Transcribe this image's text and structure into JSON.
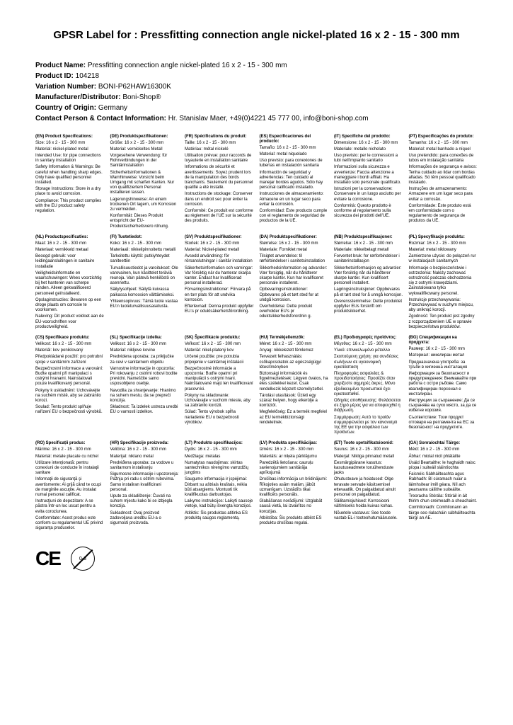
{
  "title": "GPSR Label for : Pressfitting connection angle nickel-plated 16 x 2 - 15 - 300 mm",
  "meta": {
    "productNameLabel": "Product Name:",
    "productName": "Pressfitting connection angle nickel-plated 16 x 2 - 15 - 300 mm",
    "productIdLabel": "Product ID:",
    "productId": "104218",
    "variationLabel": "Variation Number:",
    "variation": "BONI-P62HAW16300K",
    "mfrLabel": "Manufacturer/Distributor:",
    "mfr": "Boni-Shop®",
    "countryLabel": "Country of Origin:",
    "country": "Germany",
    "contactLabel": "Contact Person & Contact Information:",
    "contact": "Hr. Stanislav Maer, +49(0)4221 45 777 00, info@boni-shop.com"
  },
  "rows": [
    [
      {
        "hd": "(EN) Product Specifications:",
        "sz": "Size: 16 x 2 - 15 - 300 mm",
        "lines": [
          "Material: nickel-plated metal",
          "Intended Use: for pipe connections in sanitary installation",
          "Safety Information & Warnings: Be careful when handling sharp edges. Only have qualified personnel installed.",
          "Storage Instructions: Store in a dry place to avoid corrosion.",
          "Compliance: This product complies with the EU product safety regulation."
        ]
      },
      {
        "hd": "(DE) Produktspezifikationen:",
        "sz": "Größe: 16 x 2 - 15 - 300 mm",
        "lines": [
          "Material: vernickeltes Metall",
          "Vorgesehene Verwendung: für Rohrverbindungen in der Sanitärinstallation",
          "Sicherheitsinformationen & Warnhinweise: Vorsicht beim Umgang mit scharfen Kanten. Nur von qualifiziertem Personal installieren lassen.",
          "Lagerungshinweise: An einem trockenen Ort lagern, um Korrosion zu vermeiden.",
          "Konformität: Dieses Produkt entspricht der EU-Produktsicherheitsvero rdnung."
        ]
      },
      {
        "hd": "(FR) Spécifications du produit:",
        "sz": "Taille: 16 x 2 - 15 - 300 mm",
        "lines": [
          "Matériau: métal nickelé",
          "Utilisation prévue: pour raccords de tuyauterie en installation sanitaire",
          "Informations de sécurité et avertissements: Soyez prudent lors de la manipulation des bords tranchants. Seulement du personnel qualifié a été installé.",
          "Instructions de stockage: Conserver dans un endroit sec pour éviter la corrosion.",
          "Conformité: Ce produit est conforme au règlement de l'UE sur la sécurité des produits."
        ]
      },
      {
        "hd": "(ES) Especificaciones del producto:",
        "sz": "Tamaño: 16 x 2 - 15 - 300 mm",
        "lines": [
          "Material: metal niquelado",
          "Uso previsto: para conexiones de tuberías en instalación sanitaria",
          "Información de seguridad y advertencias: Ten cuidado al manejar bordes agudos. Sólo hay personal calificado instalado.",
          "Instrucciones de almacenamiento: Almacene en un lugar seco para evitar la corrosión.",
          "Conformidad: Este producto cumple con el reglamento de seguridad de productos de la UE."
        ]
      },
      {
        "hd": "(IT) Specifiche del prodotto:",
        "sz": "Dimensione: 16 x 2 - 15 - 300 mm",
        "lines": [
          "Materiale: metallo nichelato",
          "Uso previsto: per le connessioni a tubi nell'impianto sanitario",
          "Informazioni sulla sicurezza e avvertenze: Faccia attenzione a maneggiare i bordi affilati. Ha installato solo personale qualificato.",
          "Istruzioni per la conservazione: Conservare in un luogo asciutto per evitare la corrosione.",
          "Conformità: Questo prodotto è conforme al regolamento sulla sicurezza dei prodotti dell'UE."
        ]
      },
      {
        "hd": "(PT) Especificações do produto:",
        "sz": "Tamanho: 16 x 2 - 15 - 300 mm",
        "lines": [
          "Material: metal banhado a níquel",
          "Uso pretendido: para conexões de tubos em instalação sanitária",
          "Informações de segurança e avisos: Tenha cuidado ao lidar com bordas afiadas. Só têm pessoal qualificado instalado.",
          "Instruções de armazenamento: Armazene em um lugar seco para evitar a corrosão.",
          "Conformidade: Este produto está em conformidade com o regulamento de segurança de produtos da UE."
        ]
      }
    ],
    [
      {
        "hd": "(NL) Productspecificaties:",
        "sz": "Maat: 16 x 2 - 15 - 300 mm",
        "lines": [
          "Materiaal: vernikkeld metaal",
          "Beoogd gebruik: voor leidingaansluitingen in sanitaire installatie",
          "Veiligheidsinformatie en waarschuwingen: Wees voorzichtig bij het hanteren van scherpe randen. Alleen gekwalificeerd personeel geïnstalleerd.",
          "Opslaginstructies: Bewaren op een droge plaats om corrosie te voorkomen.",
          "Naleving: Dit product voldoet aan de EU-voorschriften voor productveiligheid."
        ]
      },
      {
        "hd": "(FI) Tuotetiedot:",
        "sz": "Koko: 16 x 2 - 15 - 300 mm",
        "lines": [
          "Materiaali: nikkelipinnoitettu metalli",
          "Tarkoitettu käyttö: putkiyhteydet saniteettiin",
          "Turvallisuustiedot ja varoitukset: Ole varovainen, kun käsittelet teräviä reunoja. Vain pätevä henkilöstö on asennettu.",
          "Säilytysohjeet: Säilytä kuivassa paikassa korroosion välttämiseksi.",
          "Yhteensopivuus: Tämä tuote vastaa EU:n tuoteturvallisuusasetusta."
        ]
      },
      {
        "hd": "(SV) Produktspecifikationer:",
        "sz": "Storlek: 16 x 2 - 15 - 300 mm",
        "lines": [
          "Material: Nickel-plated metall",
          "Avsedd användning: för rörsanslutningar i sanitär installation",
          "Säkerhetsinformation och varningar: Var försiktig när du hanterar skarpa kanter. Endast har kvalificerad personal installerad.",
          "Förvaringsinstruktioner: Förvara på en torr plats för att undvika korrosion.",
          "Efterlevnad: Denna produkt uppfyller EU:s pr oduktsäkerhetsförordning."
        ]
      },
      {
        "hd": "(DA) Produktspecifikationer:",
        "sz": "Størrelse: 16 x 2 - 15 - 300 mm",
        "lines": [
          "Materiale: Forniklet metal",
          "Tilsigtet anvendelse: til rørforbindelser i sanitetsinstallation",
          "Sikkerhedsinformation og advarsler: Vær forsigtig, når du håndterer skarpe kanter. Kun har kvalificeret personale installeret.",
          "Opbevaringsinstruktioner: Opbevares på et tørt sted for at undgå korrosion.",
          "Overholdelse: Dette produkt overholder EU's pr oduktsikkerhedsforordnin g."
        ]
      },
      {
        "hd": "(NB) Produktspesifikasjoner:",
        "sz": "Størrelse: 16 x 2 - 15 - 300 mm",
        "lines": [
          "Materiale: nikkelbelagt metall",
          "Forventet bruk: for rørforbindelser i sanitærinstallasjon",
          "Sikkerhetsinformasjon og advarsler: Vær forsiktig når du håndterer skarpe kanter. Kun kvalifisert personell installert.",
          "Lagringsinstruksjoner: Oppbevares på et tørt sted for å unngå korrosjon.",
          "Overensstemmelse: Dette produktet oppfyller EUs forskrift om produktsikkerhet."
        ]
      },
      {
        "hd": "(PL) Specyfikacje produktu:",
        "sz": "Rozmiar: 16 x 2 - 15 - 300 mm",
        "lines": [
          "Materiał: metal niklowany",
          "Zamierzone użycie: do połączeń rur w instalacjach sanitarnych",
          "Informacje o bezpieczeństwie i ostrzeżenia: Należy zachować ostrożność podczas obchodzenia się z ostrymi krawędziami. Zainstalowano tylko wykwalifikowany personel.",
          "Instrukcje przechowywania: Przechowywać w suchym miejscu, aby uniknąć korozji.",
          "Zgodność: Ten produkt jest zgodny z rozporządzeniem UE w sprawie bezpieczeństwa produktów."
        ]
      }
    ],
    [
      {
        "hd": "(CS) Specifikace produktu:",
        "sz": "Velikost: 16 x 2 - 15 - 300 mm",
        "lines": [
          "Materiál: kov poniklovaný",
          "Předpokládané použití: pro potrubní spoje v sanitárním zařízení",
          "Bezpečnostní informace a varování: Buďte opatrní při manipulaci s ostrými hranami. Nainstalovali pouze kvalifikovaný personál.",
          "Pokyny k uskladnění: Uchovávejte na suchém místě, aby se zabránilo korozi.",
          "Soulad: Tento produkt splňuje nařízení EU o bezpečnosti výrobků."
        ]
      },
      {
        "hd": "(SL) Specifikacije izdelka:",
        "sz": "Velikost: 16 x 2 - 15 - 300 mm",
        "lines": [
          "Material: nikljeve kovine",
          "Predvidena uporaba: za priključke za cevi v sanitarnem objektu",
          "Varnostne informacije in opozorila: Pri rokovanju z ostrimi robovi bodite previdni. Nameščite samo usposobljeno osebje.",
          "Navodila za shranjevanje: Hranimo na suhem mestu, da se prepreči korozija.",
          "Skladnost: Ta izdelek ustreza uredbi EU o varnosti izdelkov."
        ]
      },
      {
        "hd": "(SK) Špecifikácie produktu:",
        "sz": "Veľkosť: 16 x 2 - 15 - 300 mm",
        "lines": [
          "Materiál: nikel-platený kov",
          "Určené použitie: pre potrubia pripojenie v sanitárnej inštalácii",
          "Bezpečnostné informácie a upozornia: Buďte opatrní pri manipulácii s ostrými hrani. Nainštalované majú len kvalifikovaní pracovníci.",
          "Pokyny na skladovanie: Uchovávajte v suchom mieste, aby sa zabránilo korózii.",
          "Súlad: Tento výrobok spĺňa nariadenie EU o bezpečnosti výrobkov."
        ]
      },
      {
        "hd": "(HU) Termékjellemzők:",
        "sz": "Méret: 16 x 2 - 15 - 300 mm",
        "lines": [
          "Anyag: nikkelezett fémlemez",
          "Tervezett felhasználás: csőkapcsolatok az egészségügyi létesítményben",
          "Biztonsági információk és figyelmeztetések: Légyen óvatos, ha éles szélekkel kezel. Csak rendelkezik képzett személyzettel.",
          "Tárolási utasítások: Üzleti egy száraz helyen, hogy elkerülje a korróziót.",
          "Megfelelőség: Ez a termék megfelel az EU termékbiztonsági rendeletnek."
        ]
      },
      {
        "hd": "(EL) Προδιαγραφές προϊόντος:",
        "sz": "Μέγεθος: 16 x 2 - 15 - 300 mm",
        "lines": [
          "Υλικό: επινικελωμένο μέταλλο",
          "Σκοπούμενη χρήση: για συνδέσεις σωλήνων σε υγειονομική εγκατάσταση",
          "Πληροφορίες ασφαλείας & προειδοποιήσεις: Προσέξτε όταν χειρίζεστε αιχμηρές άκρες. Μόνο εξειδικευμένο προσωπικό έχει εγκατασταθεί.",
          "Οδηγίες αποθήκευσης: Φυλάσσεται σε ξηρό μέρος για να αποφευχθεί η διάβρωση.",
          "Συμμόρφωση: Αυτό το προϊόν συμμορφώνεται με τον κανονισμό της ΕΕ για την ασφάλεια των προϊόντων."
        ]
      },
      {
        "hd": "(BG) Спецификации на продукта:",
        "sz": "Размер: 16 x 2 - 15 - 300 mm",
        "lines": [
          "Материал: никелиран метал",
          "Предназначена употреба: за тръби в хигиенна инсталация",
          "Информация за безопасност и предупреждения: Внимавайте при работа с остри ръбове. Само квалифициран персонал е инсталиран.",
          "Инструкции за съхранение: Да се съхранява на сухо място, за да се избегне корозия.",
          "Съответствие: Този продукт отговаря на регламента на ЕС за безопасност на продуктите."
        ]
      }
    ],
    [
      {
        "hd": "(RO) Specificații produs:",
        "sz": "Mărime: 16 x 2 - 15 - 300 mm",
        "lines": [
          "Material: metale placate cu nichel",
          "Utilizare intenţionată: pentru conexiuni de conducte în instalaţii sanitare",
          "Informaţii de siguranţă şi avertismente: Ai grijă când te ocupi de marginile ascuţite. Au instalat numai personal calificat.",
          "Instrucţiuni de depozitare: A se păstra într-un loc uscat pentru a evita coroziunea.",
          "Conformitate: Acest produs este conform cu regulamentul UE privind siguranţa produselor."
        ]
      },
      {
        "hd": "(HR) Specifikacije proizvoda:",
        "sz": "Veličina: 16 x 2 - 15 - 300 mm",
        "lines": [
          "Materijal: niklano metal",
          "Predviđena uporaba: za vodove u sanitarnom instaliranju",
          "Sigurnosne informacije i upozorenja: Pažnja pri radu s oštrim rubovima. Samo instaliran kvalificirani personal.",
          "Upute za skladištenje: Čuvati na suhom mjestu kako bi se izbjegla korozija.",
          "Sukladnost: Ovaj proizvod zadovoljava uredbu EU-a o sigurnosti proizvoda."
        ]
      },
      {
        "hd": "(LT) Produkto specifikacijos:",
        "sz": "Dydis: 16 x 2 - 15 - 300 mm",
        "lines": [
          "Medžiaga: metalas",
          "Numatytas naudojimas: skirtas santechnikos nirengimo vamzdžių jungtims",
          "Saugumo informacija ir įspėjimai: Dirbant su aštriais kraštais, reikia būti atsargiems. Montuoti tik kvalifikuotas darbuotojas.",
          "Laikymo instrukcijos: Laikyti sausoje vietoje, kad būtų išvengta korozijos.",
          "Atitiktis: Šis produktas atitinka ES produktų saugos reglamentą."
        ]
      },
      {
        "hd": "(LV) Produkta specifikācijas:",
        "sz": "Izmērs: 16 x 2 - 15 - 300 mm",
        "lines": [
          "Materiāls: ar niķela pārklājumu",
          "Paredzētā lietošana: cauruļu savienojumiem sanitārāja aprīkojumā",
          "Drošības informācija un brīdinājumi: Rīkojoties asām malām, jābūt uzmanīgam. Uzstādīts tikai kvalificēts personāls.",
          "Glabāšanas norādījumi: Uzglabāt sausā vietā, lai izvairītos no korozijas.",
          "Atbilstība: Šis produkts atbilst ES produktu drošības regulai."
        ]
      },
      {
        "hd": "(ET) Toote spetsifikatsioonid:",
        "sz": "Suurus: 16 x 2 - 15 - 300 mm",
        "lines": [
          "Materjal: Nikliga pinnatud metall",
          "Eesmärgipärane kasutus: kasutuseadmete toruühenduste jaoks",
          "Ohutusteave ja hoiatused: Olge teravate servade käsitsemisel ettevaatlik. On paigaldatud ainult personal on paigaldatud.",
          "Säilitamisjuhised: Korrosiooni vältimiseks hoida kuivas kohas.",
          "Nõuetele vastavus: See toode vastab EL-i tooteohutumäärusele."
        ]
      },
      {
        "hd": "(GA) Sonraíochtaí Táirge:",
        "sz": "Méid: 16 x 2 - 15 - 300 mm",
        "lines": [
          "Ábhar: miotal nicil phlátáilte",
          "Úsáid Beartaithe: le haghaidh naisc píopa i suiteáil sláintíochta",
          "Faisnéis Sábháilteachta agus Rabhadh: Bí cúramach nuair a láimhsítear imill géara. Níl ach pearsanra cáilithe suiteáilte.",
          "Treoracha Stórála: Stóráil in áit thirim chun creimeadh a sheachaint.",
          "Comhlíonadh: Comhlíonann an táirge seo rialacháin sábháilteachta táirgí an AE."
        ]
      }
    ]
  ],
  "ageLabel": "0-3"
}
